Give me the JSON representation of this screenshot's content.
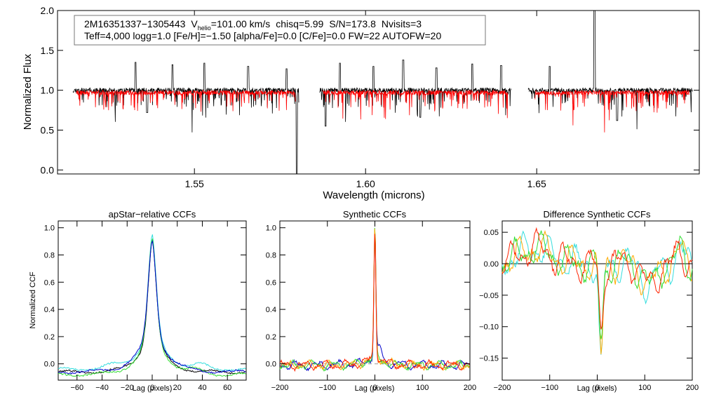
{
  "colors": {
    "observed": "#000000",
    "model": "#ff0000",
    "ccf_black": "#000000",
    "ccf_green": "#33dd33",
    "ccf_cyan": "#33dddd",
    "ccf_blue": "#0000cc",
    "ccf_red": "#ff2200",
    "ccf_orange": "#ffaa00",
    "zero_line": "#000000",
    "dash_line": "#999999"
  },
  "annotation": {
    "object": "2M16351337−1305443",
    "v_label": "V",
    "v_sub": "helio",
    "v_value": "=101.00 km/s",
    "chisq": "chisq=5.99",
    "snr": "S/N=173.8",
    "nvisits": "Nvisits=3",
    "line2": "Teff=4,000 logg=1.0 [Fe/H]=−1.50 [alpha/Fe]=0.0 [C/Fe]=0.0 FW=22 AUTOFW=20"
  },
  "chart_data": [
    {
      "id": "spectrum",
      "type": "line",
      "title": "",
      "xlabel": "Wavelength (microns)",
      "ylabel": "Normalized Flux",
      "xlim": [
        1.51,
        1.6975
      ],
      "ylim": [
        -0.05,
        2.0
      ],
      "xticks": [
        1.55,
        1.6,
        1.65
      ],
      "xtick_labels": [
        "1.55",
        "1.60",
        "1.65"
      ],
      "yticks": [
        0.0,
        0.5,
        1.0,
        1.5,
        2.0
      ],
      "ytick_labels": [
        "0.0",
        "0.5",
        "1.0",
        "1.5",
        "2.0"
      ],
      "series": [
        {
          "name": "observed",
          "continuum": 1.0,
          "segments": [
            [
              1.5145,
              1.5805
            ],
            [
              1.5865,
              1.6425
            ],
            [
              1.6475,
              1.6955
            ]
          ]
        },
        {
          "name": "model",
          "continuum": 0.97,
          "segments": [
            [
              1.5155,
              1.5795
            ],
            [
              1.5875,
              1.6415
            ],
            [
              1.6495,
              1.6945
            ]
          ]
        }
      ],
      "features": [
        {
          "x": 1.5328,
          "y": 1.35
        },
        {
          "x": 1.5436,
          "y": 1.32
        },
        {
          "x": 1.5529,
          "y": 1.34
        },
        {
          "x": 1.5657,
          "y": 1.3
        },
        {
          "x": 1.5769,
          "y": 1.27
        },
        {
          "x": 1.5799,
          "y": -0.05
        },
        {
          "x": 1.5925,
          "y": 1.34
        },
        {
          "x": 1.6023,
          "y": 1.3
        },
        {
          "x": 1.611,
          "y": 1.38
        },
        {
          "x": 1.6207,
          "y": 1.28
        },
        {
          "x": 1.6312,
          "y": 1.33
        },
        {
          "x": 1.6396,
          "y": 1.31
        },
        {
          "x": 1.6538,
          "y": 1.3
        },
        {
          "x": 1.6669,
          "y": 2.0
        },
        {
          "x": 1.6735,
          "y": 0.62
        },
        {
          "x": 1.5883,
          "y": 0.55
        },
        {
          "x": 1.5362,
          "y": 0.72
        },
        {
          "x": 1.616,
          "y": 0.66
        }
      ]
    },
    {
      "id": "apstar_ccf",
      "type": "line",
      "title": "apStar−relative CCFs",
      "xlabel": "Lag (pixels)",
      "ylabel": "Normalized CCF",
      "xlim": [
        -75,
        75
      ],
      "ylim": [
        -0.12,
        1.05
      ],
      "xticks": [
        -60,
        -40,
        -20,
        0,
        20,
        40,
        60
      ],
      "xtick_labels": [
        "−60",
        "−40",
        "−20",
        "0",
        "20",
        "40",
        "60"
      ],
      "yticks": [
        0.0,
        0.2,
        0.4,
        0.6,
        0.8,
        1.0
      ],
      "ytick_labels": [
        "0.0",
        "0.2",
        "0.4",
        "0.6",
        "0.8",
        "1.0"
      ],
      "series": [
        {
          "name": "black",
          "color": "#000000",
          "peak": 0.98,
          "base": -0.06
        },
        {
          "name": "cyan",
          "color": "#33dddd",
          "peak": 0.99,
          "base": -0.04
        },
        {
          "name": "green",
          "color": "#33dd33",
          "peak": 1.0,
          "base": -0.08
        },
        {
          "name": "blue",
          "color": "#0000cc",
          "peak": 0.97,
          "base": -0.06
        }
      ]
    },
    {
      "id": "synthetic_ccf",
      "type": "line",
      "title": "Synthetic CCFs",
      "xlabel": "Lag (pixels)",
      "ylabel": "",
      "xlim": [
        -200,
        200
      ],
      "ylim": [
        -0.12,
        1.05
      ],
      "xticks": [
        -200,
        -100,
        0,
        100,
        200
      ],
      "xtick_labels": [
        "−200",
        "−100",
        "0",
        "100",
        "200"
      ],
      "yticks": [
        0.0,
        0.2,
        0.4,
        0.6,
        0.8,
        1.0
      ],
      "ytick_labels": [
        "0.0",
        "0.2",
        "0.4",
        "0.6",
        "0.8",
        "1.0"
      ],
      "dashed_zero": 0.0,
      "series": [
        {
          "name": "blue",
          "color": "#0000cc"
        },
        {
          "name": "green",
          "color": "#33dd33"
        },
        {
          "name": "orange",
          "color": "#ffaa00"
        },
        {
          "name": "red",
          "color": "#ff2200"
        }
      ]
    },
    {
      "id": "diff_ccf",
      "type": "line",
      "title": "Difference Synthetic CCFs",
      "xlabel": "Lag (pixels)",
      "ylabel": "",
      "xlim": [
        -200,
        200
      ],
      "ylim": [
        -0.185,
        0.068
      ],
      "xticks": [
        -200,
        -100,
        0,
        100,
        200
      ],
      "xtick_labels": [
        "−200",
        "−100",
        "0",
        "100",
        "200"
      ],
      "yticks": [
        0.05,
        0.0,
        -0.05,
        -0.1,
        -0.15
      ],
      "ytick_labels": [
        "0.05",
        "0.00",
        "−0.05",
        "−0.10",
        "−0.15"
      ],
      "zero_line": 0.0,
      "series": [
        {
          "name": "cyan",
          "color": "#33dddd",
          "dip": -0.18
        },
        {
          "name": "orange",
          "color": "#ffaa00",
          "dip": -0.16
        },
        {
          "name": "green",
          "color": "#33dd33",
          "dip": -0.14
        },
        {
          "name": "red",
          "color": "#ff2200",
          "dip": -0.12
        }
      ]
    }
  ]
}
